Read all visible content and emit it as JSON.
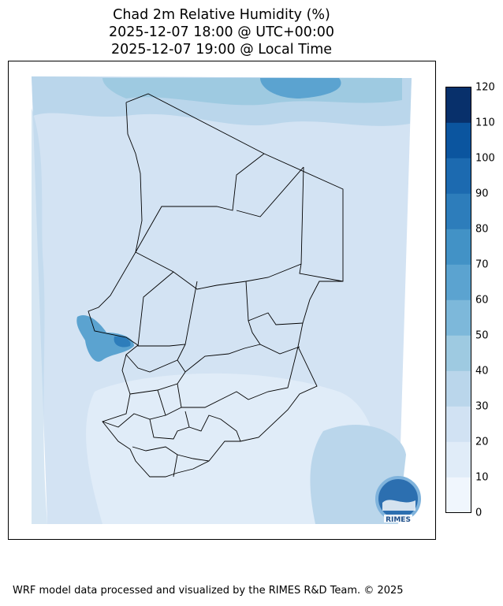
{
  "title": {
    "line1": "Chad 2m Relative Humidity (%)",
    "line2": "2025-12-07 18:00 @ UTC+00:00",
    "line3": "2025-12-07 19:00 @ Local Time"
  },
  "colorbar": {
    "min": 0,
    "max": 120,
    "ticks": [
      "0",
      "10",
      "20",
      "30",
      "40",
      "50",
      "60",
      "70",
      "80",
      "90",
      "100",
      "110",
      "120"
    ],
    "colors": [
      "#f0f6fd",
      "#e0ecf8",
      "#d1e2f3",
      "#bad6eb",
      "#9ecae1",
      "#7db8da",
      "#5ba3d0",
      "#4292c6",
      "#2d7dbb",
      "#1c6ab0",
      "#0b559f",
      "#08306b"
    ]
  },
  "map": {
    "region": "Chad",
    "base_color": "#d3e3f3",
    "logo_text": "RIMES"
  },
  "footer": "WRF model data processed and visualized by the RIMES R&D Team. © 2025"
}
